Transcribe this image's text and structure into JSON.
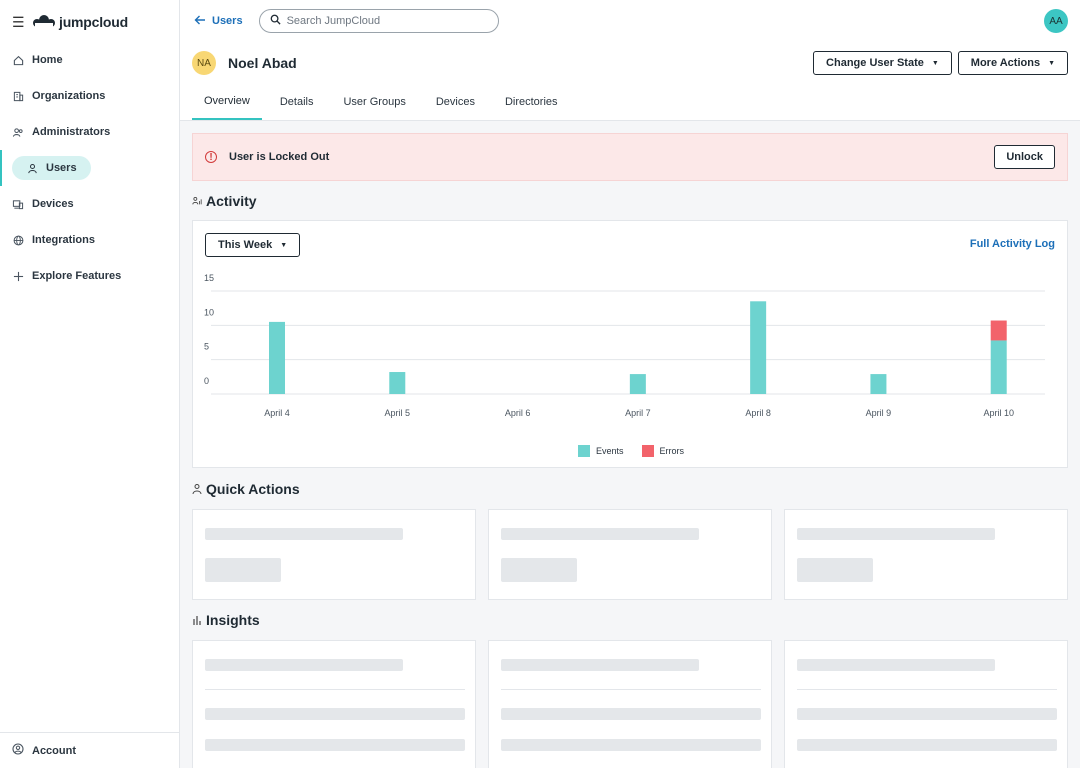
{
  "sidebar": {
    "logo_text": "jumpcloud",
    "items": [
      {
        "label": "Home",
        "icon": "home-icon"
      },
      {
        "label": "Organizations",
        "icon": "building-icon"
      },
      {
        "label": "Administrators",
        "icon": "admins-icon"
      },
      {
        "label": "Users",
        "icon": "user-icon",
        "active": true
      },
      {
        "label": "Devices",
        "icon": "devices-icon"
      },
      {
        "label": "Integrations",
        "icon": "globe-icon"
      },
      {
        "label": "Explore Features",
        "icon": "plus-icon"
      }
    ],
    "account_label": "Account"
  },
  "header": {
    "back_label": "Users",
    "search_placeholder": "Search JumpCloud",
    "admin_initials": "AA",
    "user_initials": "NA",
    "user_name": "Noel Abad",
    "change_state_label": "Change User State",
    "more_actions_label": "More Actions",
    "tabs": [
      "Overview",
      "Details",
      "User Groups",
      "Devices",
      "Directories"
    ]
  },
  "alert": {
    "message": "User is Locked Out",
    "unlock_label": "Unlock"
  },
  "activity": {
    "title": "Activity",
    "range_label": "This Week",
    "full_log_label": "Full Activity Log"
  },
  "chart_data": {
    "type": "bar",
    "stacked": true,
    "categories": [
      "April 4",
      "April 5",
      "April 6",
      "April 7",
      "April 8",
      "April 9",
      "April 10"
    ],
    "series": [
      {
        "name": "Events",
        "values": [
          10.5,
          3.2,
          0,
          2.9,
          13.5,
          2.9,
          7.8
        ],
        "color": "#6dd3cf"
      },
      {
        "name": "Errors",
        "values": [
          0,
          0,
          0,
          0,
          0,
          0,
          2.9
        ],
        "color": "#f2636b"
      }
    ],
    "y_ticks": [
      "15",
      "10",
      "5",
      "0"
    ],
    "ylim": [
      0,
      15
    ],
    "grid": true,
    "legend_position": "bottom-center"
  },
  "quick_actions": {
    "title": "Quick Actions"
  },
  "insights": {
    "title": "Insights"
  },
  "colors": {
    "accent": "#34c3c0",
    "link": "#1c6fb8",
    "error": "#d23b3b"
  }
}
